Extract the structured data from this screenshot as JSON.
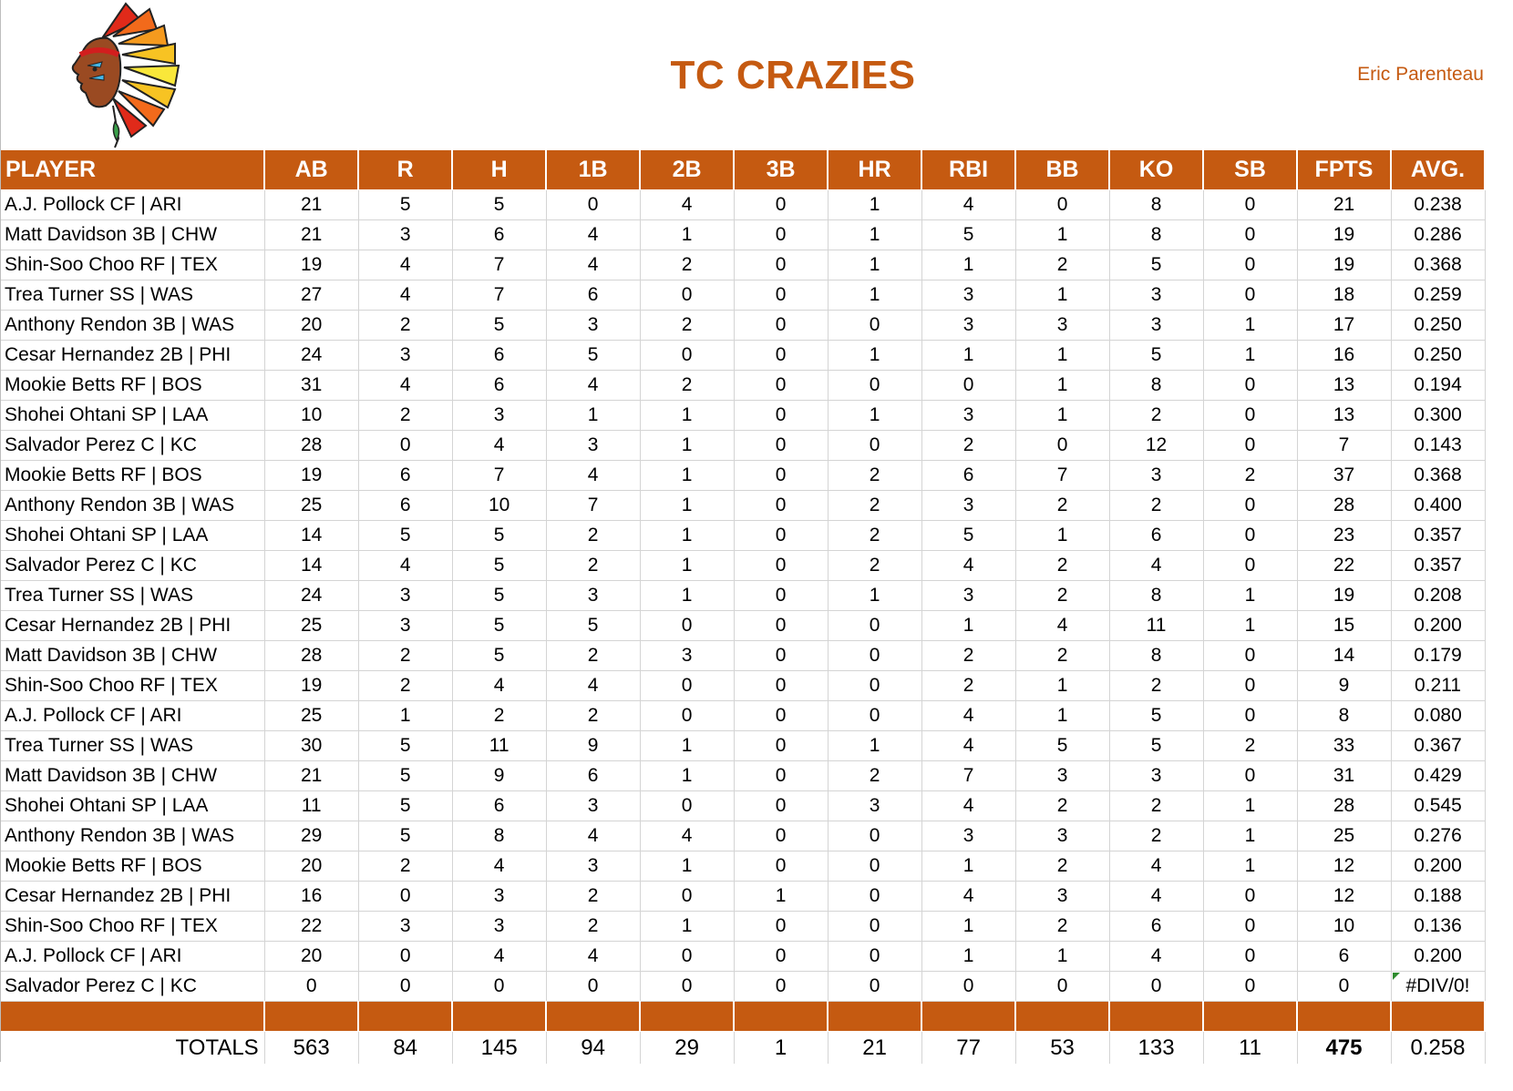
{
  "header": {
    "title": "TC CRAZIES",
    "owner": "Eric Parenteau",
    "logo_icon": "chief-headdress-logo"
  },
  "colors": {
    "accent": "#c55a11",
    "grid": "#d4d4d4",
    "error_flag": "#2e8b2e"
  },
  "table": {
    "columns": [
      "PLAYER",
      "AB",
      "R",
      "H",
      "1B",
      "2B",
      "3B",
      "HR",
      "RBI",
      "BB",
      "KO",
      "SB",
      "FPTS",
      "AVG."
    ],
    "rows": [
      [
        "A.J. Pollock CF | ARI",
        "21",
        "5",
        "5",
        "0",
        "4",
        "0",
        "1",
        "4",
        "0",
        "8",
        "0",
        "21",
        "0.238"
      ],
      [
        "Matt Davidson 3B | CHW",
        "21",
        "3",
        "6",
        "4",
        "1",
        "0",
        "1",
        "5",
        "1",
        "8",
        "0",
        "19",
        "0.286"
      ],
      [
        "Shin-Soo Choo RF | TEX",
        "19",
        "4",
        "7",
        "4",
        "2",
        "0",
        "1",
        "1",
        "2",
        "5",
        "0",
        "19",
        "0.368"
      ],
      [
        "Trea Turner SS | WAS",
        "27",
        "4",
        "7",
        "6",
        "0",
        "0",
        "1",
        "3",
        "1",
        "3",
        "0",
        "18",
        "0.259"
      ],
      [
        "Anthony Rendon 3B | WAS",
        "20",
        "2",
        "5",
        "3",
        "2",
        "0",
        "0",
        "3",
        "3",
        "3",
        "1",
        "17",
        "0.250"
      ],
      [
        "Cesar Hernandez 2B | PHI",
        "24",
        "3",
        "6",
        "5",
        "0",
        "0",
        "1",
        "1",
        "1",
        "5",
        "1",
        "16",
        "0.250"
      ],
      [
        "Mookie Betts RF | BOS",
        "31",
        "4",
        "6",
        "4",
        "2",
        "0",
        "0",
        "0",
        "1",
        "8",
        "0",
        "13",
        "0.194"
      ],
      [
        "Shohei Ohtani SP | LAA",
        "10",
        "2",
        "3",
        "1",
        "1",
        "0",
        "1",
        "3",
        "1",
        "2",
        "0",
        "13",
        "0.300"
      ],
      [
        "Salvador Perez C | KC",
        "28",
        "0",
        "4",
        "3",
        "1",
        "0",
        "0",
        "2",
        "0",
        "12",
        "0",
        "7",
        "0.143"
      ],
      [
        "Mookie Betts RF | BOS",
        "19",
        "6",
        "7",
        "4",
        "1",
        "0",
        "2",
        "6",
        "7",
        "3",
        "2",
        "37",
        "0.368"
      ],
      [
        "Anthony Rendon 3B | WAS",
        "25",
        "6",
        "10",
        "7",
        "1",
        "0",
        "2",
        "3",
        "2",
        "2",
        "0",
        "28",
        "0.400"
      ],
      [
        "Shohei Ohtani SP | LAA",
        "14",
        "5",
        "5",
        "2",
        "1",
        "0",
        "2",
        "5",
        "1",
        "6",
        "0",
        "23",
        "0.357"
      ],
      [
        "Salvador Perez C | KC",
        "14",
        "4",
        "5",
        "2",
        "1",
        "0",
        "2",
        "4",
        "2",
        "4",
        "0",
        "22",
        "0.357"
      ],
      [
        "Trea Turner SS | WAS",
        "24",
        "3",
        "5",
        "3",
        "1",
        "0",
        "1",
        "3",
        "2",
        "8",
        "1",
        "19",
        "0.208"
      ],
      [
        "Cesar Hernandez 2B | PHI",
        "25",
        "3",
        "5",
        "5",
        "0",
        "0",
        "0",
        "1",
        "4",
        "11",
        "1",
        "15",
        "0.200"
      ],
      [
        "Matt Davidson 3B | CHW",
        "28",
        "2",
        "5",
        "2",
        "3",
        "0",
        "0",
        "2",
        "2",
        "8",
        "0",
        "14",
        "0.179"
      ],
      [
        "Shin-Soo Choo RF | TEX",
        "19",
        "2",
        "4",
        "4",
        "0",
        "0",
        "0",
        "2",
        "1",
        "2",
        "0",
        "9",
        "0.211"
      ],
      [
        "A.J. Pollock CF | ARI",
        "25",
        "1",
        "2",
        "2",
        "0",
        "0",
        "0",
        "4",
        "1",
        "5",
        "0",
        "8",
        "0.080"
      ],
      [
        "Trea Turner SS | WAS",
        "30",
        "5",
        "11",
        "9",
        "1",
        "0",
        "1",
        "4",
        "5",
        "5",
        "2",
        "33",
        "0.367"
      ],
      [
        "Matt Davidson 3B | CHW",
        "21",
        "5",
        "9",
        "6",
        "1",
        "0",
        "2",
        "7",
        "3",
        "3",
        "0",
        "31",
        "0.429"
      ],
      [
        "Shohei Ohtani SP | LAA",
        "11",
        "5",
        "6",
        "3",
        "0",
        "0",
        "3",
        "4",
        "2",
        "2",
        "1",
        "28",
        "0.545"
      ],
      [
        "Anthony Rendon 3B | WAS",
        "29",
        "5",
        "8",
        "4",
        "4",
        "0",
        "0",
        "3",
        "3",
        "2",
        "1",
        "25",
        "0.276"
      ],
      [
        "Mookie Betts RF | BOS",
        "20",
        "2",
        "4",
        "3",
        "1",
        "0",
        "0",
        "1",
        "2",
        "4",
        "1",
        "12",
        "0.200"
      ],
      [
        "Cesar Hernandez 2B | PHI",
        "16",
        "0",
        "3",
        "2",
        "0",
        "1",
        "0",
        "4",
        "3",
        "4",
        "0",
        "12",
        "0.188"
      ],
      [
        "Shin-Soo Choo RF | TEX",
        "22",
        "3",
        "3",
        "2",
        "1",
        "0",
        "0",
        "1",
        "2",
        "6",
        "0",
        "10",
        "0.136"
      ],
      [
        "A.J. Pollock CF | ARI",
        "20",
        "0",
        "4",
        "4",
        "0",
        "0",
        "0",
        "1",
        "1",
        "4",
        "0",
        "6",
        "0.200"
      ],
      [
        "Salvador Perez C | KC",
        "0",
        "0",
        "0",
        "0",
        "0",
        "0",
        "0",
        "0",
        "0",
        "0",
        "0",
        "0",
        "#DIV/0!"
      ]
    ],
    "totals": [
      "TOTALS",
      "563",
      "84",
      "145",
      "94",
      "29",
      "1",
      "21",
      "77",
      "53",
      "133",
      "11",
      "475",
      "0.258"
    ]
  }
}
